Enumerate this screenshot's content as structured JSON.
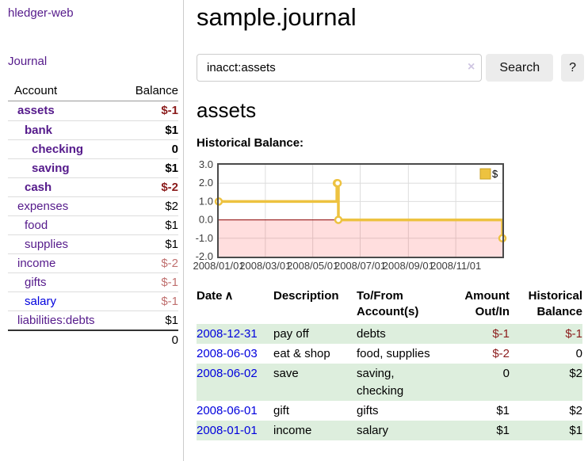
{
  "sidebar": {
    "app_title": "hledger-web",
    "journal_label": "Journal",
    "accounts_table": {
      "headers": {
        "account": "Account",
        "balance": "Balance"
      },
      "rows": [
        {
          "name": "assets",
          "balance": "$-1",
          "indent": 1,
          "bold": true,
          "negative": "strong"
        },
        {
          "name": "bank",
          "balance": "$1",
          "indent": 2,
          "bold": true
        },
        {
          "name": "checking",
          "balance": "0",
          "indent": 3,
          "bold": true
        },
        {
          "name": "saving",
          "balance": "$1",
          "indent": 3,
          "bold": true
        },
        {
          "name": "cash",
          "balance": "$-2",
          "indent": 2,
          "bold": true,
          "negative": "strong"
        },
        {
          "name": "expenses",
          "balance": "$2",
          "indent": 1,
          "bold": false
        },
        {
          "name": "food",
          "balance": "$1",
          "indent": 2,
          "bold": false
        },
        {
          "name": "supplies",
          "balance": "$1",
          "indent": 2,
          "bold": false
        },
        {
          "name": "income",
          "balance": "$-2",
          "indent": 1,
          "bold": false,
          "negative": "soft"
        },
        {
          "name": "gifts",
          "balance": "$-1",
          "indent": 2,
          "bold": false,
          "negative": "soft"
        },
        {
          "name": "salary",
          "balance": "$-1",
          "indent": 2,
          "bold": false,
          "negative": "soft",
          "link_style": "unvisited"
        },
        {
          "name": "liabilities:debts",
          "balance": "$1",
          "indent": 1,
          "bold": false
        }
      ],
      "total": "0"
    }
  },
  "main": {
    "page_title": "sample.journal",
    "search": {
      "value": "inacct:assets",
      "clear_icon": "×",
      "button_label": "Search",
      "help_label": "?"
    },
    "section_title": "assets",
    "chart_label": "Historical Balance:"
  },
  "chart_data": {
    "type": "line",
    "step": true,
    "title": "Historical Balance",
    "series": [
      {
        "name": "$",
        "color": "#edc240",
        "points": [
          {
            "x": "2008-01-01",
            "y": 1
          },
          {
            "x": "2008-06-01",
            "y": 2
          },
          {
            "x": "2008-06-02",
            "y": 2
          },
          {
            "x": "2008-06-03",
            "y": 0
          },
          {
            "x": "2008-12-31",
            "y": -1
          }
        ]
      }
    ],
    "x_range": [
      "2008-01-01",
      "2008-12-31"
    ],
    "ylim": [
      -2,
      3
    ],
    "y_ticks": [
      {
        "value": 3,
        "label": "3.0"
      },
      {
        "value": 2,
        "label": "2.0"
      },
      {
        "value": 1,
        "label": "1.0"
      },
      {
        "value": 0,
        "label": "0.0"
      },
      {
        "value": -1,
        "label": "-1.0"
      },
      {
        "value": -2,
        "label": "-2.0"
      }
    ],
    "x_ticks": [
      {
        "date": "2008-01-01",
        "label": "2008/01/01"
      },
      {
        "date": "2008-03-01",
        "label": "2008/03/01"
      },
      {
        "date": "2008-05-01",
        "label": "2008/05/01"
      },
      {
        "date": "2008-07-01",
        "label": "2008/07/01"
      },
      {
        "date": "2008-09-01",
        "label": "2008/09/01"
      },
      {
        "date": "2008-11-01",
        "label": "2008/11/01"
      }
    ],
    "grid": true,
    "grid_color": "#dddddd",
    "negative_fill": "rgba(255,0,0,0.13)",
    "zero_line_color": "#8b0000",
    "border_color": "#4a4a4a",
    "legend_swatch_border": "#c9a227",
    "legend": {
      "label": "$",
      "position": "top-right"
    }
  },
  "register_table": {
    "sort_asc_icon": "∧",
    "columns": [
      {
        "label": "Date",
        "align": "left"
      },
      {
        "label": "Description",
        "align": "left"
      },
      {
        "label": "To/From Account(s)",
        "align": "left"
      },
      {
        "label": "Amount Out/In",
        "align": "right"
      },
      {
        "label": "Historical Balance",
        "align": "right"
      }
    ],
    "rows": [
      {
        "date": "2008-12-31",
        "description": "pay off",
        "accounts": "debts",
        "amount": "$-1",
        "balance": "$-1"
      },
      {
        "date": "2008-06-03",
        "description": "eat & shop",
        "accounts": "food, supplies",
        "amount": "$-2",
        "balance": "0"
      },
      {
        "date": "2008-06-02",
        "description": "save",
        "accounts": "saving, checking",
        "amount": "0",
        "balance": "$2"
      },
      {
        "date": "2008-06-01",
        "description": "gift",
        "accounts": "gifts",
        "amount": "$1",
        "balance": "$2"
      },
      {
        "date": "2008-01-01",
        "description": "income",
        "accounts": "salary",
        "amount": "$1",
        "balance": "$1"
      }
    ]
  },
  "colors": {
    "link_purple": "#551a8b",
    "link_blue": "#0000dd",
    "negative_strong": "#8b1c1c",
    "negative_soft": "#c0706f",
    "row_stripe_green": "#ddeedd",
    "chart_line_gold": "#edc240"
  }
}
